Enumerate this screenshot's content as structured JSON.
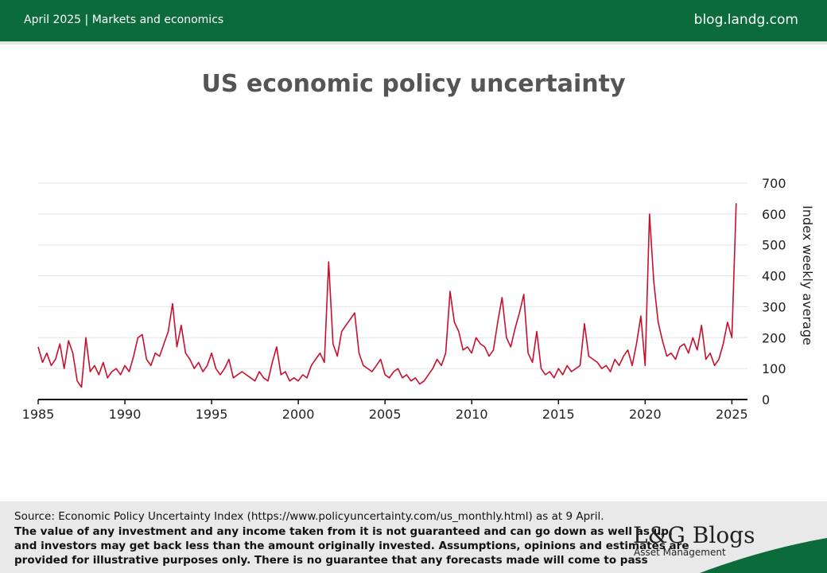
{
  "header": {
    "left": "April 2025 | Markets and economics",
    "right": "blog.landg.com"
  },
  "chart_data": {
    "type": "line",
    "title": "US economic policy uncertainty",
    "y_label": "Index weekly average",
    "x": [
      1985,
      1985.25,
      1985.5,
      1985.75,
      1986,
      1986.25,
      1986.5,
      1986.75,
      1987,
      1987.25,
      1987.5,
      1987.75,
      1988,
      1988.25,
      1988.5,
      1988.75,
      1989,
      1989.25,
      1989.5,
      1989.75,
      1990,
      1990.25,
      1990.5,
      1990.75,
      1991,
      1991.25,
      1991.5,
      1991.75,
      1992,
      1992.25,
      1992.5,
      1992.75,
      1993,
      1993.25,
      1993.5,
      1993.75,
      1994,
      1994.25,
      1994.5,
      1994.75,
      1995,
      1995.25,
      1995.5,
      1995.75,
      1996,
      1996.25,
      1996.5,
      1996.75,
      1997,
      1997.25,
      1997.5,
      1997.75,
      1998,
      1998.25,
      1998.5,
      1998.75,
      1999,
      1999.25,
      1999.5,
      1999.75,
      2000,
      2000.25,
      2000.5,
      2000.75,
      2001,
      2001.25,
      2001.5,
      2001.75,
      2002,
      2002.25,
      2002.5,
      2002.75,
      2003,
      2003.25,
      2003.5,
      2003.75,
      2004,
      2004.25,
      2004.5,
      2004.75,
      2005,
      2005.25,
      2005.5,
      2005.75,
      2006,
      2006.25,
      2006.5,
      2006.75,
      2007,
      2007.25,
      2007.5,
      2007.75,
      2008,
      2008.25,
      2008.5,
      2008.75,
      2009,
      2009.25,
      2009.5,
      2009.75,
      2010,
      2010.25,
      2010.5,
      2010.75,
      2011,
      2011.25,
      2011.5,
      2011.75,
      2012,
      2012.25,
      2012.5,
      2012.75,
      2013,
      2013.25,
      2013.5,
      2013.75,
      2014,
      2014.25,
      2014.5,
      2014.75,
      2015,
      2015.25,
      2015.5,
      2015.75,
      2016,
      2016.25,
      2016.5,
      2016.75,
      2017,
      2017.25,
      2017.5,
      2017.75,
      2018,
      2018.25,
      2018.5,
      2018.75,
      2019,
      2019.25,
      2019.5,
      2019.75,
      2020,
      2020.25,
      2020.5,
      2020.75,
      2021,
      2021.25,
      2021.5,
      2021.75,
      2022,
      2022.25,
      2022.5,
      2022.75,
      2023,
      2023.25,
      2023.5,
      2023.75,
      2024,
      2024.25,
      2024.5,
      2024.75,
      2025,
      2025.25
    ],
    "series": [
      {
        "name": "US economic policy uncertainty",
        "color": "#c8102e",
        "values": [
          170,
          120,
          150,
          110,
          130,
          180,
          100,
          190,
          150,
          60,
          40,
          200,
          90,
          110,
          80,
          120,
          70,
          90,
          100,
          80,
          110,
          90,
          140,
          200,
          210,
          130,
          110,
          150,
          140,
          180,
          220,
          310,
          170,
          240,
          150,
          130,
          100,
          120,
          90,
          110,
          150,
          100,
          80,
          100,
          130,
          70,
          80,
          90,
          80,
          70,
          60,
          90,
          70,
          60,
          120,
          170,
          80,
          90,
          60,
          70,
          60,
          80,
          70,
          110,
          130,
          150,
          120,
          445,
          180,
          140,
          220,
          240,
          260,
          280,
          150,
          110,
          100,
          90,
          110,
          130,
          80,
          70,
          90,
          100,
          70,
          80,
          60,
          70,
          50,
          60,
          80,
          100,
          130,
          110,
          150,
          350,
          250,
          220,
          160,
          170,
          150,
          200,
          180,
          170,
          140,
          160,
          250,
          330,
          200,
          170,
          230,
          280,
          340,
          150,
          120,
          220,
          100,
          80,
          90,
          70,
          100,
          80,
          110,
          90,
          100,
          110,
          245,
          140,
          130,
          120,
          100,
          110,
          90,
          130,
          110,
          140,
          160,
          110,
          180,
          270,
          110,
          600,
          380,
          250,
          190,
          140,
          150,
          130,
          170,
          180,
          150,
          200,
          160,
          240,
          130,
          150,
          110,
          130,
          180,
          250,
          200,
          635
        ]
      }
    ],
    "xlim": [
      1985,
      2025.9
    ],
    "xticks": [
      1985,
      1990,
      1995,
      2000,
      2005,
      2010,
      2015,
      2020,
      2025
    ],
    "ylim": [
      0,
      700
    ],
    "yticks": [
      0,
      100,
      200,
      300,
      400,
      500,
      600,
      700
    ],
    "grid": true
  },
  "footer": {
    "source": "Source: Economic Policy Uncertainty Index (https://www.policyuncertainty.com/us_monthly.html) as at 9 April.",
    "disclaimer": [
      "The value of any investment and any income taken from it is not guaranteed and can go down as well as up,",
      "and investors may get back less than the amount originally invested. Assumptions, opinions and estimates are",
      "provided for illustrative purposes only. There is no guarantee that any forecasts made will come to pass"
    ],
    "logo": "L&G Blogs",
    "logo_sub": "Asset Management"
  }
}
